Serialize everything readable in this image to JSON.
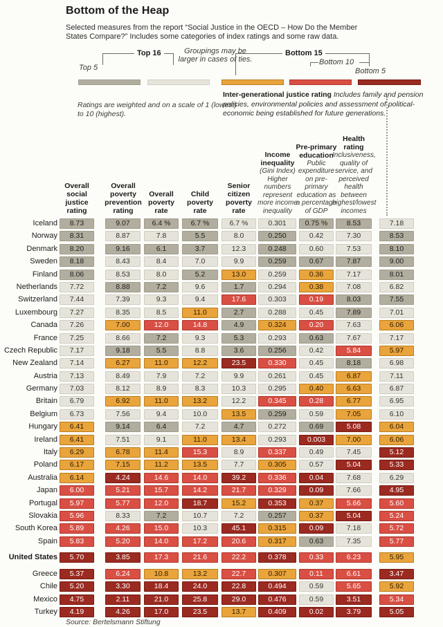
{
  "header": {
    "title": "Bottom of the Heap",
    "subtitle": "Selected measures from the report “Social Justice in the OECD – How Do the Member States Compare?” Includes some categories of index ratings and some raw data."
  },
  "legend": {
    "top16_label": "Top 16",
    "top5_label": "Top 5",
    "note": "Groupings may be larger in cases of ties.",
    "bottom15_label": "Bottom 15",
    "bottom10_label": "Bottom 10",
    "bottom5_label": "Bottom 5",
    "colors": {
      "top5": "#b2ae9f",
      "top16": "#e6e4da",
      "bottom15": "#e9a43c",
      "bottom10": "#d94f44",
      "bottom5": "#9b2a21"
    }
  },
  "notes": {
    "scale": "Ratings are weighted and on a scale of 1 (lowest) to 10 (highest).",
    "intergen_title": "Inter-generational justice rating",
    "intergen_body": " Includes family and pension policies, environmental policies and assessment of political-economic being established for future generations."
  },
  "headers": [
    {
      "label": "Overall social justice rating",
      "sublabel": ""
    },
    {
      "label": "Overall poverty prevention rating",
      "sublabel": ""
    },
    {
      "label": "Overall poverty rate",
      "sublabel": ""
    },
    {
      "label": "Child poverty rate",
      "sublabel": ""
    },
    {
      "label": "Senior citizen poverty rate",
      "sublabel": ""
    },
    {
      "label": "Income inequality",
      "sublabel": "(Gini Index) Higher numbers represent more income inequality"
    },
    {
      "label": "Pre-primary education",
      "sublabel": "Public expenditure on pre-primary education as a percentage of GDP"
    },
    {
      "label": "Health rating",
      "sublabel": "Inclusiveness, quality of service, and perceived health between highest/lowest incomes"
    },
    {
      "label": "",
      "sublabel": ""
    }
  ],
  "footer": {
    "source": "Source: Bertelsmann Stiftung"
  },
  "chart_data": {
    "type": "heatmap",
    "title": "Bottom of the Heap",
    "legend_groups": [
      "Top 5",
      "Top 16",
      "Bottom 15",
      "Bottom 10",
      "Bottom 5"
    ],
    "group_color_key": {
      "t5": "#b2ae9f",
      "t16": "#e6e4da",
      "b15": "#e9a43c",
      "b10": "#d94f44",
      "b5": "#9b2a21"
    },
    "columns": [
      "Overall social justice rating",
      "Overall poverty prevention rating",
      "Overall poverty rate",
      "Child poverty rate",
      "Senior citizen poverty rate",
      "Income inequality (Gini Index)",
      "Pre-primary education (public expenditure as % of GDP)",
      "Health rating",
      "Inter-generational justice rating"
    ],
    "rows": [
      {
        "country": "Iceland",
        "bold": false,
        "gap_before": false,
        "values": [
          "8.73",
          "9.07",
          "6.4 %",
          "6.7 %",
          "6.7 %",
          "0.301",
          "0.75 %",
          "8.53",
          "7.18"
        ],
        "groups": [
          "t5",
          "t5",
          "t5",
          "t5",
          "t16",
          "t16",
          "t5",
          "t5",
          "t16"
        ]
      },
      {
        "country": "Norway",
        "bold": false,
        "gap_before": false,
        "values": [
          "8.31",
          "8.87",
          "7.8",
          "5.5",
          "8.0",
          "0.250",
          "0.42",
          "7.30",
          "8.53"
        ],
        "groups": [
          "t5",
          "t16",
          "t16",
          "t5",
          "t16",
          "t5",
          "t16",
          "t16",
          "t5"
        ]
      },
      {
        "country": "Denmark",
        "bold": false,
        "gap_before": false,
        "values": [
          "8.20",
          "9.16",
          "6.1",
          "3.7",
          "12.3",
          "0.248",
          "0.60",
          "7.53",
          "8.10"
        ],
        "groups": [
          "t5",
          "t5",
          "t5",
          "t5",
          "t16",
          "t5",
          "t16",
          "t16",
          "t5"
        ]
      },
      {
        "country": "Sweden",
        "bold": false,
        "gap_before": false,
        "values": [
          "8.18",
          "8.43",
          "8.4",
          "7.0",
          "9.9",
          "0.259",
          "0.67",
          "7.87",
          "9.00"
        ],
        "groups": [
          "t5",
          "t16",
          "t16",
          "t16",
          "t16",
          "t5",
          "t5",
          "t5",
          "t5"
        ]
      },
      {
        "country": "Finland",
        "bold": false,
        "gap_before": false,
        "values": [
          "8.06",
          "8.53",
          "8.0",
          "5.2",
          "13.0",
          "0.259",
          "0.36",
          "7.17",
          "8.01"
        ],
        "groups": [
          "t5",
          "t16",
          "t16",
          "t5",
          "b15",
          "t16",
          "b15",
          "t16",
          "t5"
        ]
      },
      {
        "country": "Netherlands",
        "bold": false,
        "gap_before": false,
        "values": [
          "7.72",
          "8.88",
          "7.2",
          "9.6",
          "1.7",
          "0.294",
          "0.38",
          "7.08",
          "6.82"
        ],
        "groups": [
          "t16",
          "t5",
          "t5",
          "t16",
          "t5",
          "t16",
          "b15",
          "t16",
          "t16"
        ]
      },
      {
        "country": "Switzerland",
        "bold": false,
        "gap_before": false,
        "values": [
          "7.44",
          "7.39",
          "9.3",
          "9.4",
          "17.6",
          "0.303",
          "0.19",
          "8.03",
          "7.55"
        ],
        "groups": [
          "t16",
          "t16",
          "t16",
          "t16",
          "b10",
          "t16",
          "b10",
          "t5",
          "t5"
        ]
      },
      {
        "country": "Luxembourg",
        "bold": false,
        "gap_before": false,
        "values": [
          "7.27",
          "8.35",
          "8.5",
          "11.0",
          "2.7",
          "0.288",
          "0.45",
          "7.89",
          "7.01"
        ],
        "groups": [
          "t16",
          "t16",
          "t16",
          "b15",
          "t5",
          "t16",
          "t16",
          "t5",
          "t16"
        ]
      },
      {
        "country": "Canada",
        "bold": false,
        "gap_before": false,
        "values": [
          "7.26",
          "7.00",
          "12.0",
          "14.8",
          "4.9",
          "0.324",
          "0.20",
          "7.63",
          "6.06"
        ],
        "groups": [
          "t16",
          "b15",
          "b10",
          "b10",
          "t5",
          "b15",
          "b10",
          "t16",
          "b15"
        ]
      },
      {
        "country": "France",
        "bold": false,
        "gap_before": false,
        "values": [
          "7.25",
          "8.66",
          "7.2",
          "9.3",
          "5.3",
          "0.293",
          "0.63",
          "7.67",
          "7.17"
        ],
        "groups": [
          "t16",
          "t16",
          "t5",
          "t16",
          "t5",
          "t16",
          "t5",
          "t16",
          "t16"
        ]
      },
      {
        "country": "Czech Republic",
        "bold": false,
        "gap_before": false,
        "values": [
          "7.17",
          "9.18",
          "5.5",
          "8.8",
          "3.6",
          "0.256",
          "0.42",
          "5.84",
          "5.97"
        ],
        "groups": [
          "t16",
          "t5",
          "t5",
          "t16",
          "t5",
          "t5",
          "t16",
          "b10",
          "b15"
        ]
      },
      {
        "country": "New Zealand",
        "bold": false,
        "gap_before": false,
        "values": [
          "7.14",
          "6.27",
          "11.0",
          "12.2",
          "23.5",
          "0.330",
          "0.45",
          "8.18",
          "6.98"
        ],
        "groups": [
          "t16",
          "b15",
          "b15",
          "b15",
          "b5",
          "b10",
          "t16",
          "t5",
          "t16"
        ]
      },
      {
        "country": "Austria",
        "bold": false,
        "gap_before": false,
        "values": [
          "7.13",
          "8.49",
          "7.9",
          "7.2",
          "9.9",
          "0.261",
          "0.45",
          "6.87",
          "7.11"
        ],
        "groups": [
          "t16",
          "t16",
          "t16",
          "t16",
          "t16",
          "t16",
          "t16",
          "b15",
          "t16"
        ]
      },
      {
        "country": "Germany",
        "bold": false,
        "gap_before": false,
        "values": [
          "7.03",
          "8.12",
          "8.9",
          "8.3",
          "10.3",
          "0.295",
          "0.40",
          "6.63",
          "6.87"
        ],
        "groups": [
          "t16",
          "t16",
          "t16",
          "t16",
          "t16",
          "t16",
          "b15",
          "b15",
          "t16"
        ]
      },
      {
        "country": "Britain",
        "bold": false,
        "gap_before": false,
        "values": [
          "6.79",
          "6.92",
          "11.0",
          "13.2",
          "12.2",
          "0.345",
          "0.28",
          "6.77",
          "6.95"
        ],
        "groups": [
          "t16",
          "b15",
          "b15",
          "b15",
          "t16",
          "b10",
          "b10",
          "b15",
          "t16"
        ]
      },
      {
        "country": "Belgium",
        "bold": false,
        "gap_before": false,
        "values": [
          "6.73",
          "7.56",
          "9.4",
          "10.0",
          "13.5",
          "0.259",
          "0.59",
          "7.05",
          "6.10"
        ],
        "groups": [
          "t16",
          "t16",
          "t16",
          "t16",
          "b15",
          "t5",
          "t16",
          "b15",
          "t16"
        ]
      },
      {
        "country": "Hungary",
        "bold": false,
        "gap_before": false,
        "values": [
          "6.41",
          "9.14",
          "6.4",
          "7.2",
          "4.7",
          "0.272",
          "0.69",
          "5.08",
          "6.04"
        ],
        "groups": [
          "b15",
          "t5",
          "t5",
          "t16",
          "t5",
          "t16",
          "t5",
          "b5",
          "b15"
        ]
      },
      {
        "country": "Ireland",
        "bold": false,
        "gap_before": false,
        "values": [
          "6.41",
          "7.51",
          "9.1",
          "11.0",
          "13.4",
          "0.293",
          "0.003",
          "7.00",
          "6.06"
        ],
        "groups": [
          "b15",
          "t16",
          "t16",
          "b15",
          "b15",
          "t16",
          "b5",
          "b15",
          "b15"
        ]
      },
      {
        "country": "Italy",
        "bold": false,
        "gap_before": false,
        "values": [
          "6.29",
          "6.78",
          "11.4",
          "15.3",
          "8.9",
          "0.337",
          "0.49",
          "7.45",
          "5.12"
        ],
        "groups": [
          "b15",
          "b15",
          "b15",
          "b10",
          "t16",
          "b10",
          "t16",
          "t16",
          "b5"
        ]
      },
      {
        "country": "Poland",
        "bold": false,
        "gap_before": false,
        "values": [
          "6.17",
          "7.15",
          "11.2",
          "13.5",
          "7.7",
          "0.305",
          "0.57",
          "5.04",
          "5.33"
        ],
        "groups": [
          "b15",
          "b15",
          "b15",
          "b15",
          "t16",
          "b15",
          "t16",
          "b5",
          "b5"
        ]
      },
      {
        "country": "Australia",
        "bold": false,
        "gap_before": false,
        "values": [
          "6.14",
          "4.24",
          "14.6",
          "14.0",
          "39.2",
          "0.336",
          "0.04",
          "7.68",
          "6.29"
        ],
        "groups": [
          "b15",
          "b5",
          "b10",
          "b10",
          "b5",
          "b10",
          "b5",
          "t16",
          "t16"
        ]
      },
      {
        "country": "Japan",
        "bold": false,
        "gap_before": false,
        "values": [
          "6.00",
          "5.21",
          "15.7",
          "14.2",
          "21.7",
          "0.329",
          "0.09",
          "7.66",
          "4.95"
        ],
        "groups": [
          "b10",
          "b10",
          "b10",
          "b10",
          "b10",
          "b10",
          "b5",
          "t16",
          "b5"
        ]
      },
      {
        "country": "Portugal",
        "bold": false,
        "gap_before": false,
        "values": [
          "5.97",
          "5.77",
          "12.0",
          "18.7",
          "15.2",
          "0.353",
          "0.37",
          "5.66",
          "5.60"
        ],
        "groups": [
          "b10",
          "b10",
          "b10",
          "b5",
          "b15",
          "b5",
          "b15",
          "b10",
          "b10"
        ]
      },
      {
        "country": "Slovakia",
        "bold": false,
        "gap_before": false,
        "values": [
          "5.96",
          "8.33",
          "7.2",
          "10.7",
          "7.2",
          "0.257",
          "0.37",
          "5.04",
          "5.24"
        ],
        "groups": [
          "b10",
          "t16",
          "t5",
          "t16",
          "t16",
          "t5",
          "b15",
          "b5",
          "b10"
        ]
      },
      {
        "country": "South Korea",
        "bold": false,
        "gap_before": false,
        "values": [
          "5.89",
          "4.26",
          "15.0",
          "10.3",
          "45.1",
          "0.315",
          "0.09",
          "7.18",
          "5.72"
        ],
        "groups": [
          "b10",
          "b10",
          "b10",
          "t16",
          "b5",
          "b15",
          "b5",
          "t16",
          "b10"
        ]
      },
      {
        "country": "Spain",
        "bold": false,
        "gap_before": false,
        "values": [
          "5.83",
          "5.20",
          "14.0",
          "17.2",
          "20.6",
          "0.317",
          "0.63",
          "7.35",
          "5.77"
        ],
        "groups": [
          "b10",
          "b10",
          "b10",
          "b10",
          "b10",
          "b15",
          "t5",
          "t16",
          "b10"
        ]
      },
      {
        "country": "United States",
        "bold": true,
        "gap_before": true,
        "values": [
          "5.70",
          "3.85",
          "17.3",
          "21.6",
          "22.2",
          "0.378",
          "0.33",
          "6.23",
          "5.95"
        ],
        "groups": [
          "b5",
          "b5",
          "b10",
          "b10",
          "b10",
          "b5",
          "b10",
          "b10",
          "b15"
        ]
      },
      {
        "country": "Greece",
        "bold": false,
        "gap_before": true,
        "values": [
          "5.37",
          "6.24",
          "10.8",
          "13.2",
          "22.7",
          "0.307",
          "0.11",
          "6.61",
          "3.47"
        ],
        "groups": [
          "b5",
          "b10",
          "b15",
          "b15",
          "b10",
          "b15",
          "b10",
          "b10",
          "b5"
        ]
      },
      {
        "country": "Chile",
        "bold": false,
        "gap_before": false,
        "values": [
          "5.20",
          "3.30",
          "18.4",
          "24.0",
          "22.8",
          "0.494",
          "0.59",
          "5.65",
          "5.92"
        ],
        "groups": [
          "b5",
          "b5",
          "b5",
          "b5",
          "b5",
          "b5",
          "t16",
          "b10",
          "b15"
        ]
      },
      {
        "country": "Mexico",
        "bold": false,
        "gap_before": false,
        "values": [
          "4.75",
          "2.11",
          "21.0",
          "25.8",
          "29.0",
          "0.476",
          "0.59",
          "3.51",
          "5.34"
        ],
        "groups": [
          "b5",
          "b5",
          "b5",
          "b5",
          "b5",
          "b5",
          "t16",
          "b5",
          "b10"
        ]
      },
      {
        "country": "Turkey",
        "bold": false,
        "gap_before": false,
        "values": [
          "4.19",
          "4.26",
          "17.0",
          "23.5",
          "13.7",
          "0.409",
          "0.02",
          "3.79",
          "5.05"
        ],
        "groups": [
          "b5",
          "b5",
          "b5",
          "b5",
          "b15",
          "b5",
          "b5",
          "b5",
          "b5"
        ]
      }
    ]
  }
}
